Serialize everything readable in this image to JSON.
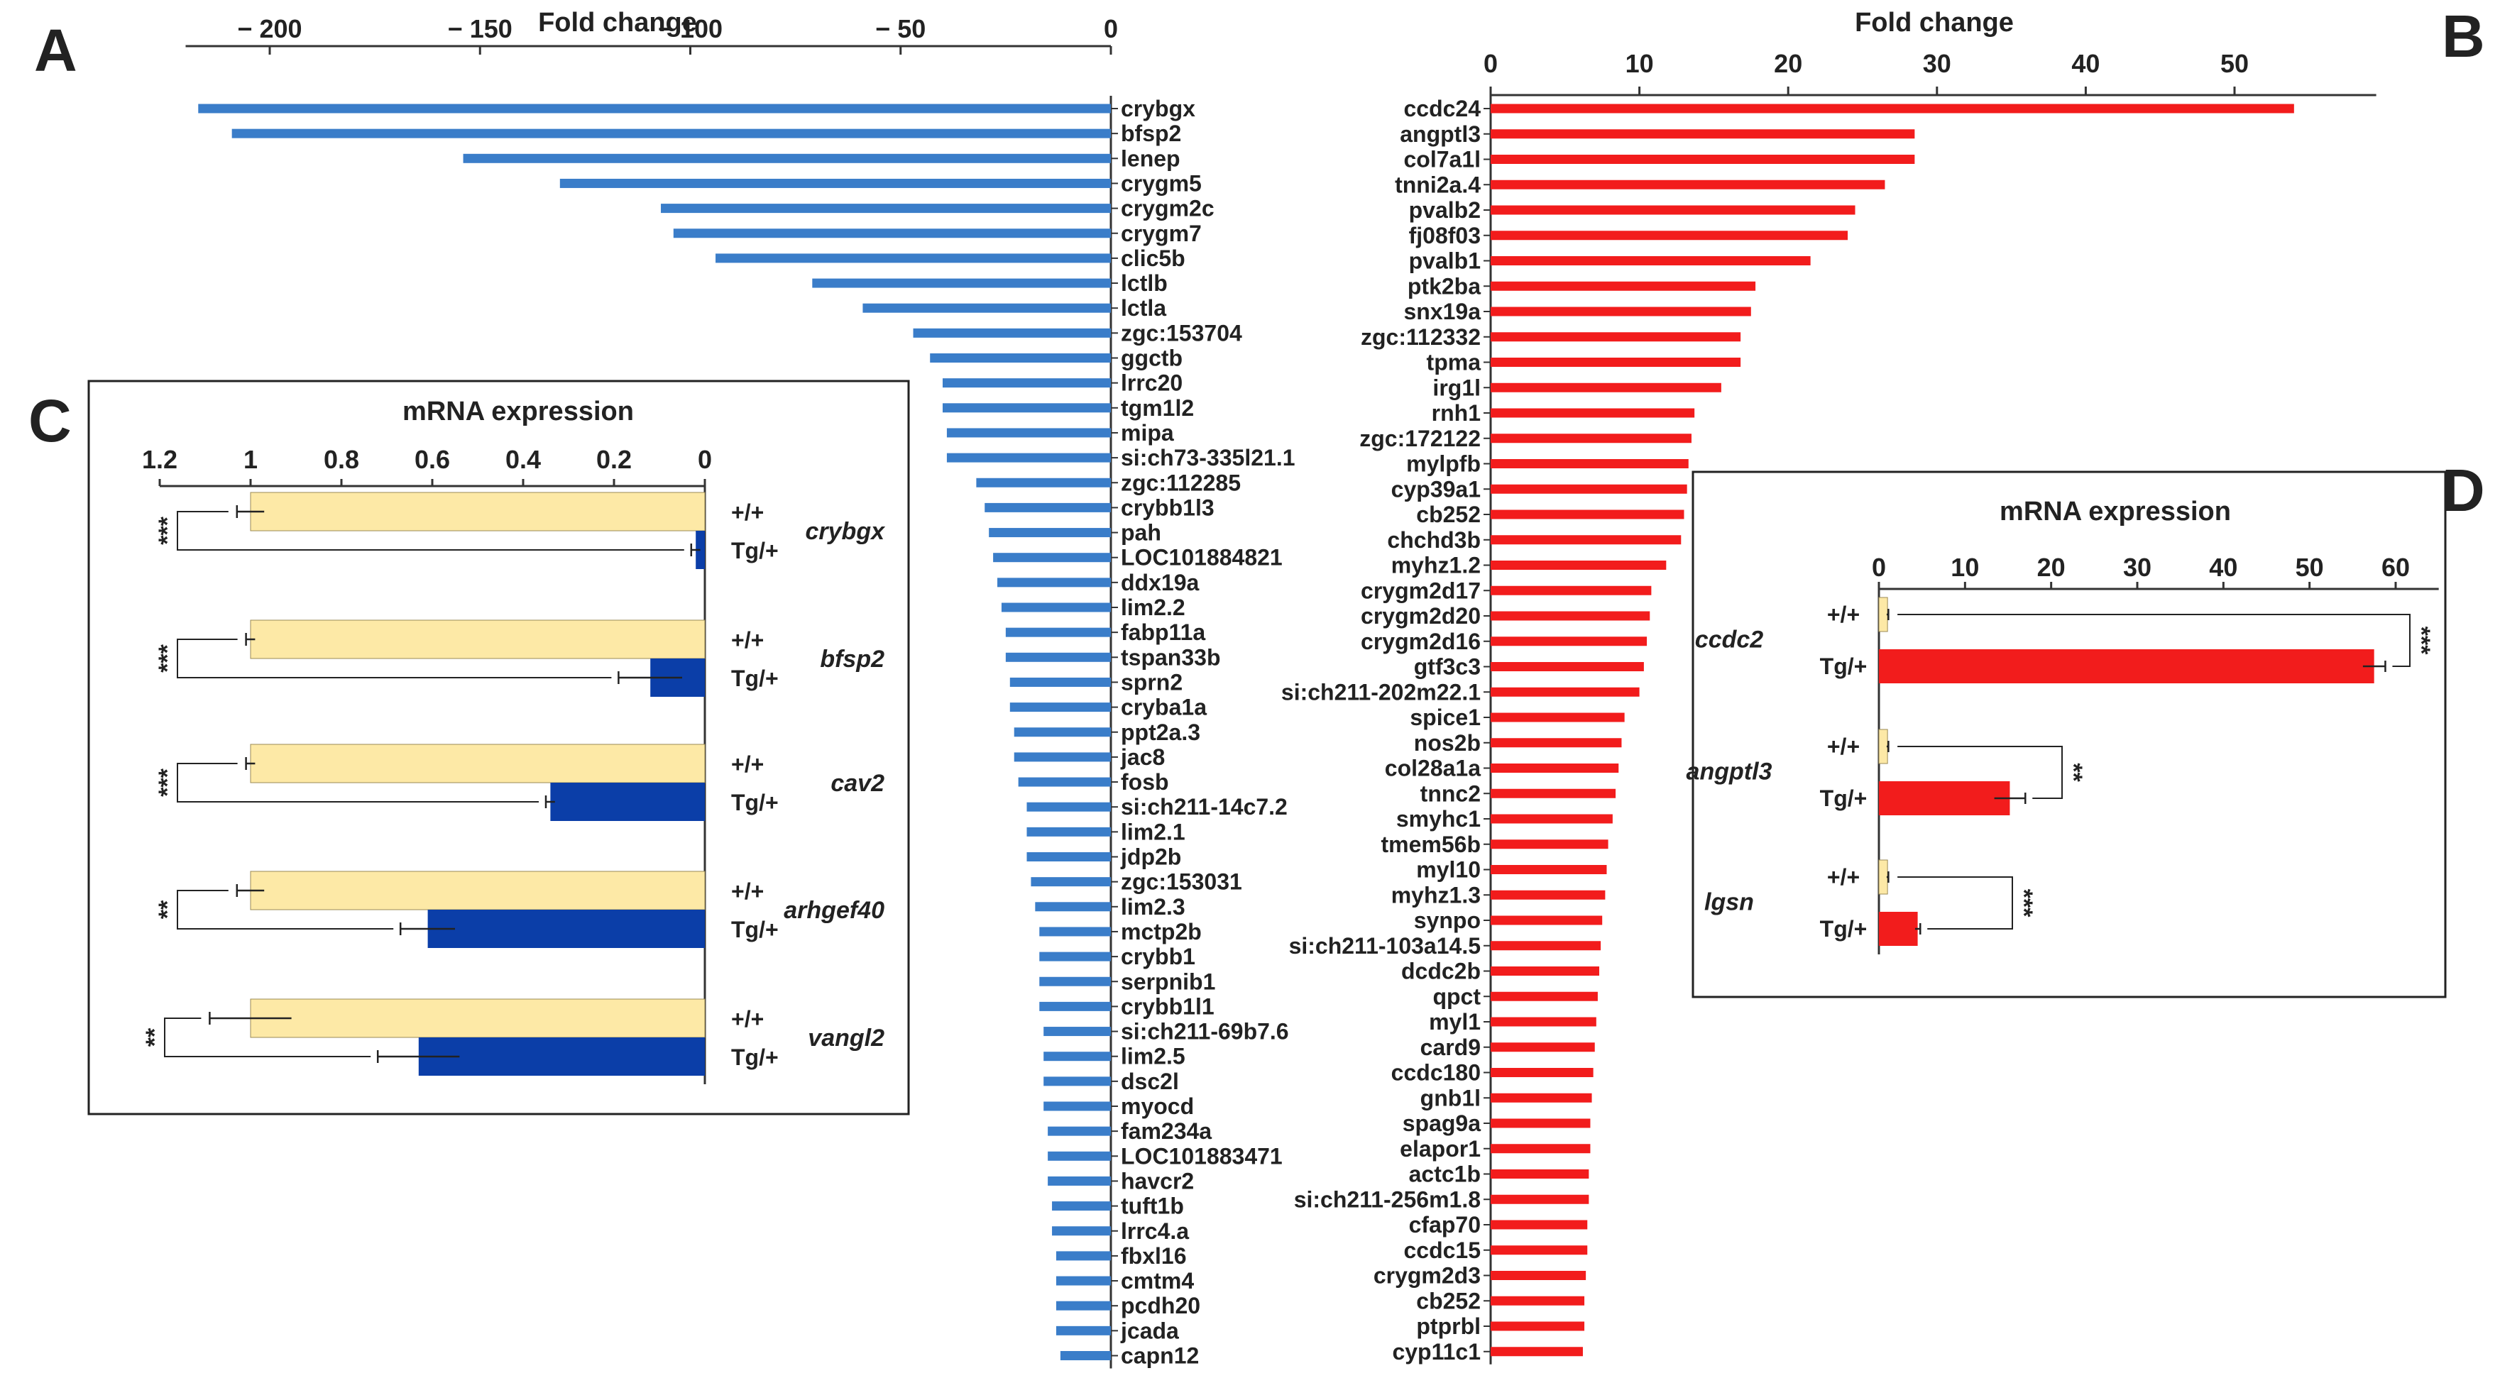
{
  "chart_data": [
    {
      "panel": "A",
      "type": "bar",
      "orientation": "horizontal",
      "title": "Fold change",
      "xlim": [
        -220,
        0
      ],
      "xticks": [
        -200,
        -150,
        -100,
        -50,
        0
      ],
      "bar_color": "#3a7dc9",
      "categories": [
        "crybgx",
        "bfsp2",
        "lenep",
        "crygm5",
        "crygm2c",
        "crygm7",
        "clic5b",
        "lctlb",
        "lctla",
        "zgc:153704",
        "ggctb",
        "lrrc20",
        "tgm1l2",
        "mipa",
        "si:ch73-335l21.1",
        "zgc:112285",
        "crybb1l3",
        "pah",
        "LOC101884821",
        "ddx19a",
        "lim2.2",
        "fabp11a",
        "tspan33b",
        "sprn2",
        "cryba1a",
        "ppt2a.3",
        "jac8",
        "fosb",
        "si:ch211-14c7.2",
        "lim2.1",
        "jdp2b",
        "zgc:153031",
        "lim2.3",
        "mctp2b",
        "crybb1",
        "serpnib1",
        "crybb1l1",
        "si:ch211-69b7.6",
        "lim2.5",
        "dsc2l",
        "myocd",
        "fam234a",
        "LOC101883471",
        "havcr2",
        "tuft1b",
        "lrrc4.a",
        "fbxl16",
        "cmtm4",
        "pcdh20",
        "jcada",
        "capn12"
      ],
      "values": [
        -217,
        -209,
        -154,
        -131,
        -107,
        -104,
        -94,
        -71,
        -59,
        -47,
        -43,
        -40,
        -40,
        -39,
        -39,
        -32,
        -30,
        -29,
        -28,
        -27,
        -26,
        -25,
        -25,
        -24,
        -24,
        -23,
        -23,
        -22,
        -20,
        -20,
        -20,
        -19,
        -18,
        -17,
        -17,
        -17,
        -17,
        -16,
        -16,
        -16,
        -16,
        -15,
        -15,
        -15,
        -14,
        -14,
        -13,
        -13,
        -13,
        -13,
        -12
      ]
    },
    {
      "panel": "B",
      "type": "bar",
      "orientation": "horizontal",
      "title": "Fold change",
      "xlim": [
        0,
        60
      ],
      "xticks": [
        0,
        10,
        20,
        30,
        40,
        50
      ],
      "bar_color": "#f21c1c",
      "categories": [
        "ccdc24",
        "angptl3",
        "col7a1l",
        "tnni2a.4",
        "pvalb2",
        "fj08f03",
        "pvalb1",
        "ptk2ba",
        "snx19a",
        "zgc:112332",
        "tpma",
        "irg1l",
        "rnh1",
        "zgc:172122",
        "mylpfb",
        "cyp39a1",
        "cb252",
        "chchd3b",
        "myhz1.2",
        "crygm2d17",
        "crygm2d20",
        "crygm2d16",
        "gtf3c3",
        "si:ch211-202m22.1",
        "spice1",
        "nos2b",
        "col28a1a",
        "tnnc2",
        "smyhc1",
        "tmem56b",
        "myl10",
        "myhz1.3",
        "synpo",
        "si:ch211-103a14.5",
        "dcdc2b",
        "qpct",
        "myl1",
        "card9",
        "ccdc180",
        "gnb1l",
        "spag9a",
        "elapor1",
        "actc1b",
        "si:ch211-256m1.8",
        "cfap70",
        "ccdc15",
        "crygm2d3",
        "cb252",
        "ptprbl",
        "cyp11c1"
      ],
      "values": [
        54,
        28.5,
        28.5,
        26.5,
        24.5,
        24,
        21.5,
        17.8,
        17.5,
        16.8,
        16.8,
        15.5,
        13.7,
        13.5,
        13.3,
        13.2,
        13,
        12.8,
        11.8,
        10.8,
        10.7,
        10.5,
        10.3,
        10,
        9,
        8.8,
        8.6,
        8.4,
        8.2,
        7.9,
        7.8,
        7.7,
        7.5,
        7.4,
        7.3,
        7.2,
        7.1,
        7,
        6.9,
        6.8,
        6.7,
        6.7,
        6.6,
        6.6,
        6.5,
        6.5,
        6.4,
        6.3,
        6.3,
        6.2
      ]
    },
    {
      "panel": "C",
      "type": "bar",
      "orientation": "horizontal",
      "title": "mRNA expression",
      "xlim": [
        1.2,
        0
      ],
      "xticks": [
        1.2,
        1,
        0.8,
        0.6,
        0.4,
        0.2,
        0
      ],
      "xtick_labels": [
        "1.2",
        "1",
        "0.8",
        "0.6",
        "0.4",
        "0.2",
        "0"
      ],
      "genotypes": [
        "+/+",
        "Tg/+"
      ],
      "colors": {
        "wild_type": "#fde9a6",
        "transgenic": "#0b3ea8"
      },
      "groups": [
        {
          "gene": "crybgx",
          "values": [
            1.0,
            0.02
          ],
          "errors": [
            0.03,
            0.01
          ],
          "significance": "***"
        },
        {
          "gene": "bfsp2",
          "values": [
            1.0,
            0.12
          ],
          "errors": [
            0.01,
            0.07
          ],
          "significance": "***"
        },
        {
          "gene": "cav2",
          "values": [
            1.0,
            0.34
          ],
          "errors": [
            0.01,
            0.01
          ],
          "significance": "***"
        },
        {
          "gene": "arhgef40",
          "values": [
            1.0,
            0.61
          ],
          "errors": [
            0.03,
            0.06
          ],
          "significance": "**"
        },
        {
          "gene": "vangl2",
          "values": [
            1.0,
            0.63
          ],
          "errors": [
            0.09,
            0.09
          ],
          "significance": "**"
        }
      ]
    },
    {
      "panel": "D",
      "type": "bar",
      "orientation": "horizontal",
      "title": "mRNA expression",
      "xlim": [
        0,
        65
      ],
      "xticks": [
        0,
        10,
        20,
        30,
        40,
        50,
        60
      ],
      "genotypes": [
        "+/+",
        "Tg/+"
      ],
      "colors": {
        "wild_type": "#fde9a6",
        "transgenic": "#f21c1c"
      },
      "groups": [
        {
          "gene": "ccdc2",
          "values": [
            1.0,
            57.5
          ],
          "errors": [
            0.1,
            1.3
          ],
          "significance": "***"
        },
        {
          "gene": "angptl3",
          "values": [
            1.0,
            15.2
          ],
          "errors": [
            0.1,
            1.8
          ],
          "significance": "**"
        },
        {
          "gene": "lgsn",
          "values": [
            1.0,
            4.5
          ],
          "errors": [
            0.1,
            0.3
          ],
          "significance": "***"
        }
      ]
    }
  ]
}
